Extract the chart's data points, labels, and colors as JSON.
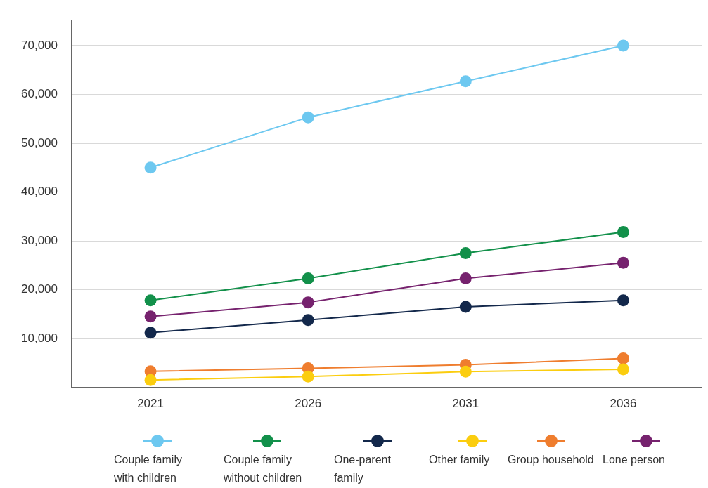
{
  "chart_data": {
    "type": "line",
    "categories": [
      "2021",
      "2026",
      "2031",
      "2036"
    ],
    "series": [
      {
        "name": "Couple family with children",
        "color": "#6dc8f0",
        "values": [
          45000,
          55300,
          62700,
          70000
        ]
      },
      {
        "name": "Couple family without children",
        "color": "#12904a",
        "values": [
          17800,
          22300,
          27500,
          31800
        ]
      },
      {
        "name": "One-parent family",
        "color": "#13284b",
        "values": [
          11200,
          13800,
          16500,
          17800
        ]
      },
      {
        "name": "Other family",
        "color": "#fbcd0f",
        "values": [
          1500,
          2200,
          3200,
          3700
        ]
      },
      {
        "name": "Group household",
        "color": "#ef7d2e",
        "values": [
          3300,
          3900,
          4600,
          5900
        ]
      },
      {
        "name": "Lone person",
        "color": "#76226e",
        "values": [
          14500,
          17400,
          22300,
          25500
        ]
      }
    ],
    "ylim": [
      0,
      75000
    ],
    "yticks": [
      {
        "value": 10000,
        "label": "10,000"
      },
      {
        "value": 20000,
        "label": "20,000"
      },
      {
        "value": 30000,
        "label": "30,000"
      },
      {
        "value": 40000,
        "label": "40,000"
      },
      {
        "value": 50000,
        "label": "50,000"
      },
      {
        "value": 60000,
        "label": "60,000"
      },
      {
        "value": 70000,
        "label": "70,000"
      }
    ],
    "grid": "y",
    "legend": "bottom",
    "marker": "circle",
    "line_style": "solid"
  }
}
